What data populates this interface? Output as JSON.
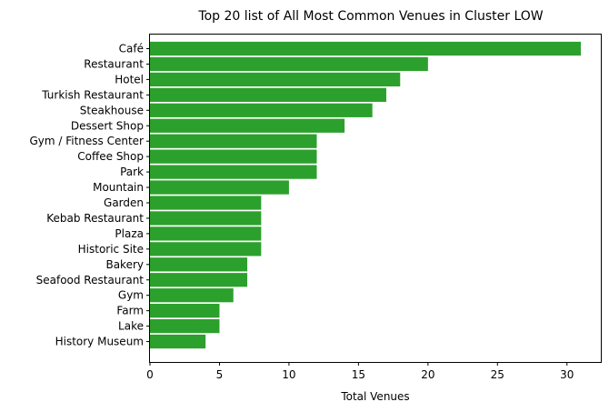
{
  "chart_data": {
    "type": "bar",
    "orientation": "horizontal",
    "title": "Top 20 list of All Most Common Venues in Cluster LOW",
    "xlabel": "Total Venues",
    "ylabel": "",
    "xlim": [
      0,
      32.5
    ],
    "xticks": [
      0,
      5,
      10,
      15,
      20,
      25,
      30
    ],
    "bar_color": "#2ca02c",
    "grid": false,
    "categories": [
      "Café",
      "Restaurant",
      "Hotel",
      "Turkish Restaurant",
      "Steakhouse",
      "Dessert Shop",
      "Gym / Fitness Center",
      "Coffee Shop",
      "Park",
      "Mountain",
      "Garden",
      "Kebab Restaurant",
      "Plaza",
      "Historic Site",
      "Bakery",
      "Seafood Restaurant",
      "Gym",
      "Farm",
      "Lake",
      "History Museum"
    ],
    "values": [
      31,
      20,
      18,
      17,
      16,
      14,
      12,
      12,
      12,
      10,
      8,
      8,
      8,
      8,
      7,
      7,
      6,
      5,
      5,
      4
    ]
  }
}
